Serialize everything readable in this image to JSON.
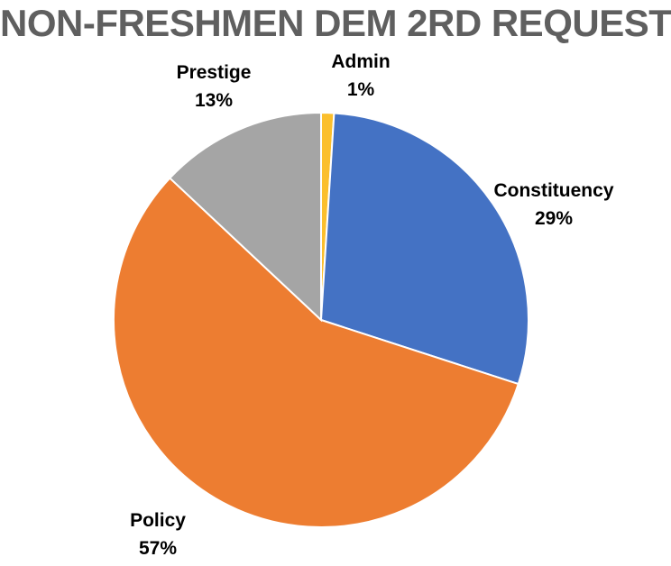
{
  "chart_data": {
    "type": "pie",
    "title": "NON-FRESHMEN DEM 2RD REQUEST",
    "categories": [
      "Admin",
      "Constituency",
      "Policy",
      "Prestige"
    ],
    "values": [
      1,
      29,
      57,
      13
    ],
    "value_labels": [
      "1%",
      "29%",
      "57%",
      "13%"
    ],
    "colors": [
      "#FBBF2D",
      "#4472C4",
      "#ED7D31",
      "#A5A5A5"
    ],
    "start_angle_deg": 0,
    "direction": "clockwise",
    "legend": "none",
    "data_labels": "outside"
  }
}
